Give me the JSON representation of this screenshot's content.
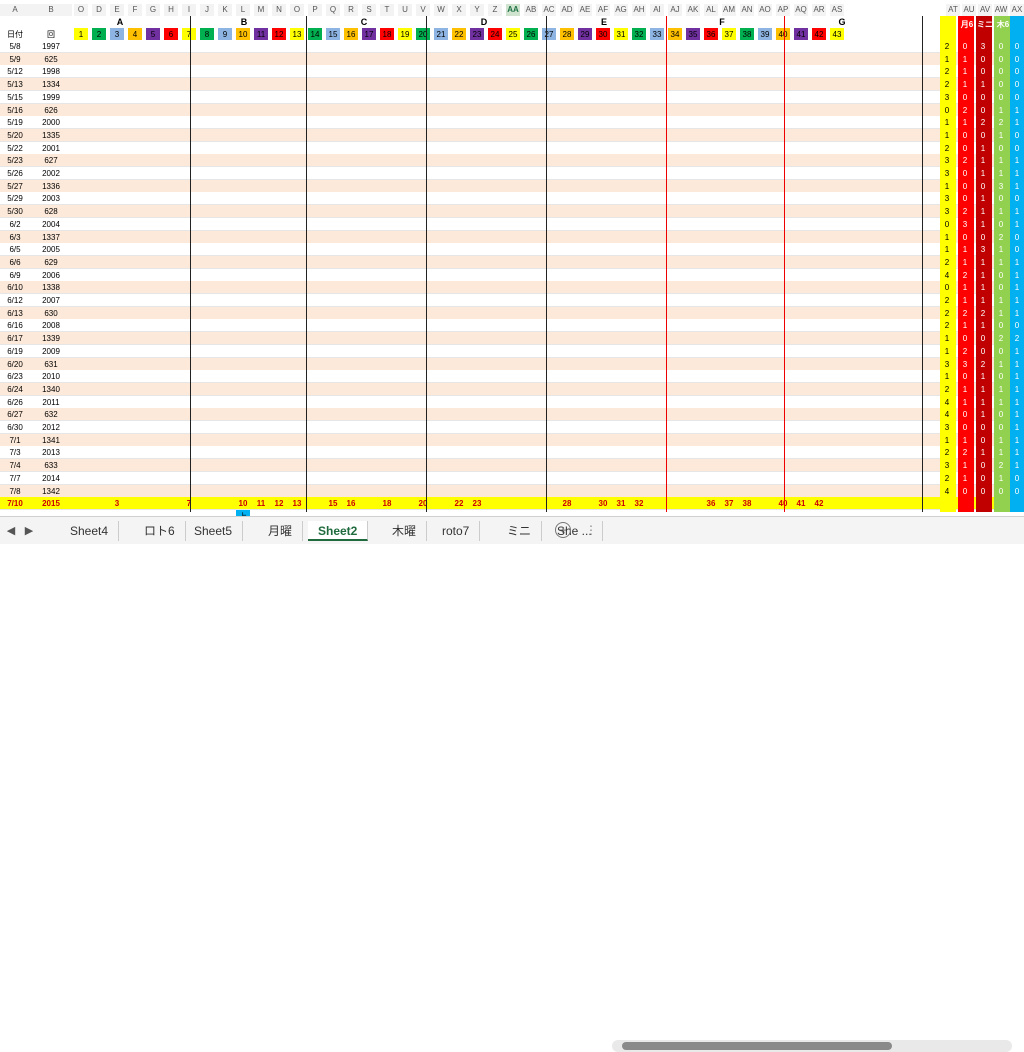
{
  "columns": [
    "A",
    "B",
    "O",
    "D",
    "E",
    "F",
    "G",
    "H",
    "I",
    "J",
    "K",
    "L",
    "M",
    "N",
    "O",
    "P",
    "Q",
    "R",
    "S",
    "T",
    "U",
    "V",
    "W",
    "X",
    "Y",
    "Z",
    "AA",
    "AB",
    "AC",
    "AD",
    "AE",
    "AF",
    "AG",
    "AH",
    "AI",
    "AJ",
    "AK",
    "AL",
    "AM",
    "AN",
    "AO",
    "AP",
    "AQ",
    "AR",
    "AS",
    "AT",
    "AU",
    "AV",
    "AW",
    "AX"
  ],
  "selected_column": "AA",
  "groups": [
    "A",
    "B",
    "C",
    "D",
    "E",
    "F",
    "G"
  ],
  "header_row": {
    "date_label": "日付",
    "round_label": "回",
    "nums": [
      1,
      2,
      3,
      4,
      5,
      6,
      7,
      8,
      9,
      10,
      11,
      12,
      13,
      14,
      15,
      16,
      17,
      18,
      19,
      20,
      21,
      22,
      23,
      24,
      25,
      26,
      27,
      28,
      29,
      30,
      31,
      32,
      33,
      34,
      35,
      36,
      37,
      38,
      39,
      40,
      41,
      42,
      43
    ]
  },
  "right_headers": [
    "月6",
    "ミニ",
    "木6"
  ],
  "rows": [
    {
      "date": "5/8",
      "round": "1997"
    },
    {
      "date": "5/9",
      "round": "625"
    },
    {
      "date": "5/12",
      "round": "1998"
    },
    {
      "date": "5/13",
      "round": "1334"
    },
    {
      "date": "5/15",
      "round": "1999"
    },
    {
      "date": "5/16",
      "round": "626"
    },
    {
      "date": "5/19",
      "round": "2000"
    },
    {
      "date": "5/20",
      "round": "1335"
    },
    {
      "date": "5/22",
      "round": "2001"
    },
    {
      "date": "5/23",
      "round": "627"
    },
    {
      "date": "5/26",
      "round": "2002"
    },
    {
      "date": "5/27",
      "round": "1336"
    },
    {
      "date": "5/29",
      "round": "2003"
    },
    {
      "date": "5/30",
      "round": "628"
    },
    {
      "date": "6/2",
      "round": "2004"
    },
    {
      "date": "6/3",
      "round": "1337"
    },
    {
      "date": "6/5",
      "round": "2005"
    },
    {
      "date": "6/6",
      "round": "629"
    },
    {
      "date": "6/9",
      "round": "2006"
    },
    {
      "date": "6/10",
      "round": "1338"
    },
    {
      "date": "6/12",
      "round": "2007"
    },
    {
      "date": "6/13",
      "round": "630"
    },
    {
      "date": "6/16",
      "round": "2008"
    },
    {
      "date": "6/17",
      "round": "1339"
    },
    {
      "date": "6/19",
      "round": "2009"
    },
    {
      "date": "6/20",
      "round": "631"
    },
    {
      "date": "6/23",
      "round": "2010"
    },
    {
      "date": "6/24",
      "round": "1340"
    },
    {
      "date": "6/26",
      "round": "2011"
    },
    {
      "date": "6/27",
      "round": "632"
    },
    {
      "date": "6/30",
      "round": "2012"
    },
    {
      "date": "7/1",
      "round": "1341"
    },
    {
      "date": "7/3",
      "round": "2013"
    },
    {
      "date": "7/4",
      "round": "633"
    },
    {
      "date": "7/7",
      "round": "2014"
    },
    {
      "date": "7/8",
      "round": "1342"
    }
  ],
  "total_row": {
    "date": "7/10",
    "round": "2015",
    "vals": [
      "3",
      "7",
      "10",
      "11",
      "12",
      "13",
      "15",
      "16",
      "18",
      "20",
      "22",
      "23",
      "28",
      "30",
      "31",
      "32",
      "36",
      "37",
      "38",
      "40",
      "41",
      "42"
    ]
  },
  "right_values": [
    [
      "2",
      "0",
      "3",
      "0",
      "0"
    ],
    [
      "1",
      "1",
      "0",
      "0",
      "0"
    ],
    [
      "2",
      "1",
      "0",
      "0",
      "0"
    ],
    [
      "2",
      "1",
      "1",
      "0",
      "0"
    ],
    [
      "3",
      "0",
      "0",
      "0",
      "0"
    ],
    [
      "0",
      "2",
      "0",
      "1",
      "1"
    ],
    [
      "1",
      "1",
      "2",
      "2",
      "1"
    ],
    [
      "1",
      "0",
      "0",
      "1",
      "0"
    ],
    [
      "2",
      "0",
      "1",
      "0",
      "0"
    ],
    [
      "3",
      "2",
      "1",
      "1",
      "1"
    ],
    [
      "3",
      "0",
      "1",
      "1",
      "1"
    ],
    [
      "1",
      "0",
      "0",
      "3",
      "1"
    ],
    [
      "3",
      "0",
      "1",
      "0",
      "0"
    ],
    [
      "3",
      "2",
      "1",
      "1",
      "1"
    ],
    [
      "0",
      "3",
      "1",
      "0",
      "1"
    ],
    [
      "1",
      "0",
      "0",
      "2",
      "0"
    ],
    [
      "1",
      "1",
      "3",
      "1",
      "0"
    ],
    [
      "2",
      "1",
      "1",
      "1",
      "1"
    ],
    [
      "4",
      "2",
      "1",
      "0",
      "1"
    ],
    [
      "0",
      "1",
      "1",
      "0",
      "1"
    ],
    [
      "2",
      "1",
      "1",
      "1",
      "1"
    ],
    [
      "2",
      "2",
      "2",
      "1",
      "1"
    ],
    [
      "2",
      "1",
      "1",
      "0",
      "0"
    ],
    [
      "1",
      "0",
      "0",
      "2",
      "2"
    ],
    [
      "1",
      "2",
      "0",
      "0",
      "1"
    ],
    [
      "3",
      "3",
      "2",
      "1",
      "1"
    ],
    [
      "1",
      "0",
      "1",
      "0",
      "1"
    ],
    [
      "2",
      "1",
      "1",
      "1",
      "1"
    ],
    [
      "4",
      "1",
      "1",
      "1",
      "1"
    ],
    [
      "4",
      "0",
      "1",
      "0",
      "1"
    ],
    [
      "3",
      "0",
      "0",
      "0",
      "1"
    ],
    [
      "1",
      "1",
      "0",
      "1",
      "1"
    ],
    [
      "2",
      "2",
      "1",
      "1",
      "1"
    ],
    [
      "3",
      "1",
      "0",
      "2",
      "1"
    ],
    [
      "2",
      "1",
      "0",
      "1",
      "0"
    ],
    [
      "4",
      "0",
      "0",
      "0",
      "0"
    ]
  ],
  "tabs": [
    "Sheet4",
    "ロト6",
    "Sheet5",
    "月曜",
    "Sheet2",
    "木曜",
    "roto7",
    "ミニ",
    "She ..."
  ],
  "active_tab": "Sheet2",
  "extra_label": "上",
  "colors": {
    "red": "#ff0000",
    "yellow": "#ffff00",
    "blue": "#8db4e2",
    "green": "#00b050",
    "orange": "#ffc000",
    "pink": "#fde9d9",
    "header_bg": "#f3f3f3"
  }
}
